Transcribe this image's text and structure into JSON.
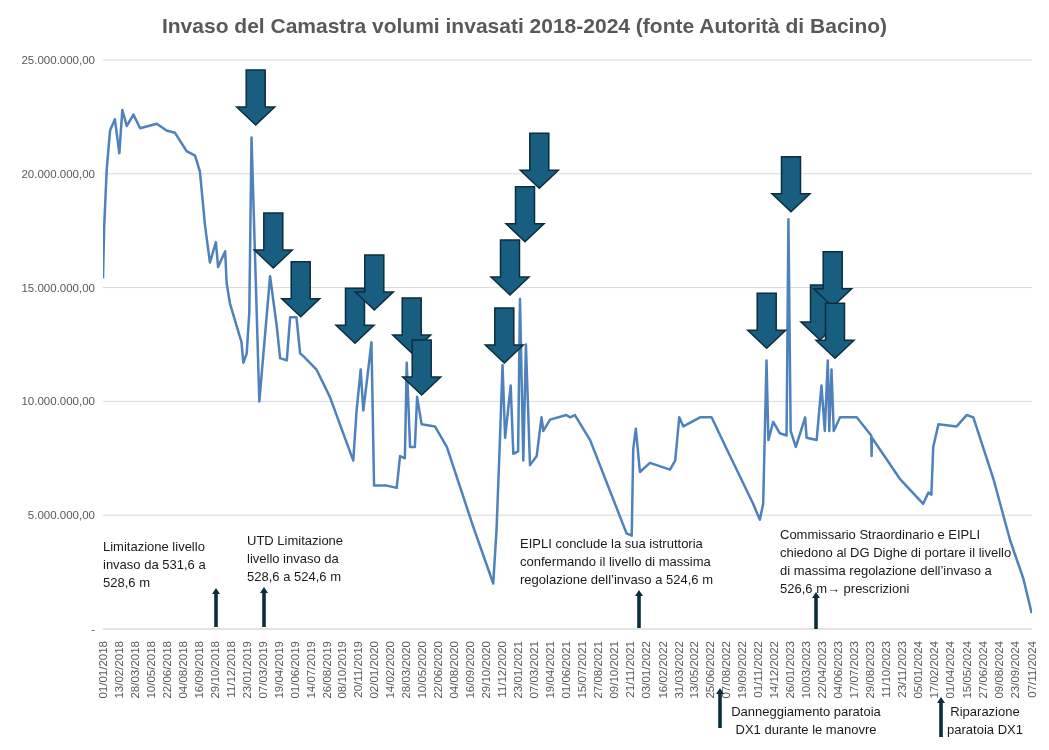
{
  "chart_data": {
    "type": "line",
    "title": "Invaso del Camastra volumi invasati 2018-2024 (fonte Autorità di Bacino)",
    "x": [
      "2018-01-01",
      "2018-01-04",
      "2018-01-11",
      "2018-01-20",
      "2018-02-02",
      "2018-02-14",
      "2018-02-22",
      "2018-03-06",
      "2018-03-24",
      "2018-04-11",
      "2018-05-26",
      "2018-06-21",
      "2018-07-14",
      "2018-08-14",
      "2018-09-06",
      "2018-09-19",
      "2018-10-03",
      "2018-10-16",
      "2018-11-01",
      "2018-11-07",
      "2018-11-26",
      "2018-11-30",
      "2018-12-09",
      "2019-01-09",
      "2019-01-14",
      "2019-01-23",
      "2019-01-30",
      "2019-02-05",
      "2019-02-26",
      "2019-03-27",
      "2019-04-14",
      "2019-04-23",
      "2019-05-11",
      "2019-05-20",
      "2019-06-06",
      "2019-06-16",
      "2019-06-24",
      "2019-07-30",
      "2019-09-04",
      "2019-11-06",
      "2019-11-15",
      "2019-11-26",
      "2019-12-03",
      "2019-12-12",
      "2019-12-25",
      "2020-01-01",
      "2020-02-04",
      "2020-03-02",
      "2020-03-11",
      "2020-03-24",
      "2020-03-29",
      "2020-04-07",
      "2020-04-20",
      "2020-04-26",
      "2020-05-08",
      "2020-06-13",
      "2020-07-15",
      "2020-09-24",
      "2020-11-17",
      "2020-11-26",
      "2020-12-05",
      "2020-12-12",
      "2020-12-19",
      "2021-01-03",
      "2021-01-10",
      "2021-01-23",
      "2021-01-28",
      "2021-02-06",
      "2021-02-13",
      "2021-02-24",
      "2021-03-14",
      "2021-03-27",
      "2021-04-01",
      "2021-04-19",
      "2021-06-02",
      "2021-06-12",
      "2021-06-25",
      "2021-08-05",
      "2021-11-11",
      "2021-11-25",
      "2021-11-29",
      "2021-12-06",
      "2021-12-17",
      "2022-01-13",
      "2022-03-08",
      "2022-03-22",
      "2022-04-02",
      "2022-04-13",
      "2022-05-28",
      "2022-06-28",
      "2022-08-08",
      "2022-10-18",
      "2022-11-05",
      "2022-11-14",
      "2022-11-23",
      "2022-11-28",
      "2022-12-11",
      "2022-12-29",
      "2023-01-16",
      "2023-01-21",
      "2023-01-27",
      "2023-02-10",
      "2023-03-07",
      "2023-03-11",
      "2023-04-07",
      "2023-04-20",
      "2023-04-29",
      "2023-05-07",
      "2023-05-11",
      "2023-05-17",
      "2023-05-23",
      "2023-06-09",
      "2023-07-24",
      "2023-09-01",
      "2023-09-02",
      "2023-09-03",
      "2023-11-17",
      "2024-01-19",
      "2024-02-02",
      "2024-02-10",
      "2024-02-15",
      "2024-02-29",
      "2024-04-18",
      "2024-05-15",
      "2024-06-02",
      "2024-07-26",
      "2024-09-09",
      "2024-10-15",
      "2024-11-06"
    ],
    "series": [
      {
        "color": "#4f81bd",
        "values": [
          15400000,
          17600000,
          20200000,
          21900000,
          22400000,
          20900000,
          22800000,
          22100000,
          22600000,
          22000000,
          22200000,
          21900000,
          21800000,
          21000000,
          20800000,
          20100000,
          17700000,
          16100000,
          17000000,
          15900000,
          16600000,
          15200000,
          14300000,
          12600000,
          11700000,
          12100000,
          13900000,
          21600000,
          10000000,
          15500000,
          13300000,
          11900000,
          11800000,
          13700000,
          13700000,
          12100000,
          12000000,
          11400000,
          10200000,
          7400000,
          9600000,
          11400000,
          9600000,
          10800000,
          12600000,
          6300000,
          6300000,
          6200000,
          7600000,
          7500000,
          11700000,
          8000000,
          8000000,
          10200000,
          9000000,
          8900000,
          8000000,
          4500000,
          2000000,
          4400000,
          8300000,
          11600000,
          8400000,
          10700000,
          7700000,
          7800000,
          14500000,
          7400000,
          12500000,
          7200000,
          7600000,
          9300000,
          8700000,
          9200000,
          9400000,
          9300000,
          9400000,
          8300000,
          4200000,
          4100000,
          7900000,
          8800000,
          6900000,
          7300000,
          7000000,
          7400000,
          9300000,
          8900000,
          9300000,
          9300000,
          7900000,
          5500000,
          4800000,
          5500000,
          11800000,
          8300000,
          9100000,
          8600000,
          8500000,
          18000000,
          8700000,
          8000000,
          9300000,
          8400000,
          8300000,
          10700000,
          8700000,
          11800000,
          8700000,
          11400000,
          8700000,
          9300000,
          9300000,
          8500000,
          7600000,
          8400000,
          6600000,
          5500000,
          6000000,
          5900000,
          8000000,
          9000000,
          8900000,
          9400000,
          9300000,
          6600000,
          3900000,
          2200000,
          700000
        ]
      }
    ],
    "xlim": [
      "2018-01-01",
      "2024-11-07"
    ],
    "xticks": [
      {
        "value": "2018-01-01",
        "label": "01/01/2018"
      },
      {
        "value": "2018-02-13",
        "label": "13/02/2018"
      },
      {
        "value": "2018-03-28",
        "label": "28/03/2018"
      },
      {
        "value": "2018-05-10",
        "label": "10/05/2018"
      },
      {
        "value": "2018-06-22",
        "label": "22/06/2018"
      },
      {
        "value": "2018-08-04",
        "label": "04/08/2018"
      },
      {
        "value": "2018-09-16",
        "label": "16/09/2018"
      },
      {
        "value": "2018-10-29",
        "label": "29/10/2018"
      },
      {
        "value": "2018-12-11",
        "label": "11/12/2018"
      },
      {
        "value": "2019-01-23",
        "label": "23/01/2019"
      },
      {
        "value": "2019-03-07",
        "label": "07/03/2019"
      },
      {
        "value": "2019-04-19",
        "label": "19/04/2019"
      },
      {
        "value": "2019-06-01",
        "label": "01/06/2019"
      },
      {
        "value": "2019-07-14",
        "label": "14/07/2019"
      },
      {
        "value": "2019-08-26",
        "label": "26/08/2019"
      },
      {
        "value": "2019-10-08",
        "label": "08/10/2019"
      },
      {
        "value": "2019-11-20",
        "label": "20/11/2019"
      },
      {
        "value": "2020-01-02",
        "label": "02/01/2020"
      },
      {
        "value": "2020-02-14",
        "label": "14/02/2020"
      },
      {
        "value": "2020-03-28",
        "label": "28/03/2020"
      },
      {
        "value": "2020-05-10",
        "label": "10/05/2020"
      },
      {
        "value": "2020-06-22",
        "label": "22/06/2020"
      },
      {
        "value": "2020-08-04",
        "label": "04/08/2020"
      },
      {
        "value": "2020-09-16",
        "label": "16/09/2020"
      },
      {
        "value": "2020-10-29",
        "label": "29/10/2020"
      },
      {
        "value": "2020-12-11",
        "label": "11/12/2020"
      },
      {
        "value": "2021-01-23",
        "label": "23/01/2021"
      },
      {
        "value": "2021-03-07",
        "label": "07/03/2021"
      },
      {
        "value": "2021-04-19",
        "label": "19/04/2021"
      },
      {
        "value": "2021-06-01",
        "label": "01/06/2021"
      },
      {
        "value": "2021-07-15",
        "label": "15/07/2021"
      },
      {
        "value": "2021-08-27",
        "label": "27/08/2021"
      },
      {
        "value": "2021-10-09",
        "label": "09/10/2021"
      },
      {
        "value": "2021-11-21",
        "label": "21/11/2021"
      },
      {
        "value": "2022-01-03",
        "label": "03/01/2022"
      },
      {
        "value": "2022-02-16",
        "label": "16/02/2022"
      },
      {
        "value": "2022-03-31",
        "label": "31/03/2022"
      },
      {
        "value": "2022-05-13",
        "label": "13/05/2022"
      },
      {
        "value": "2022-06-25",
        "label": "25/06/2022"
      },
      {
        "value": "2022-08-07",
        "label": "07/08/2022"
      },
      {
        "value": "2022-09-19",
        "label": "19/09/2022"
      },
      {
        "value": "2022-11-01",
        "label": "01/11/2022"
      },
      {
        "value": "2022-12-14",
        "label": "14/12/2022"
      },
      {
        "value": "2023-01-26",
        "label": "26/01/2023"
      },
      {
        "value": "2023-03-10",
        "label": "10/03/2023"
      },
      {
        "value": "2023-04-22",
        "label": "22/04/2023"
      },
      {
        "value": "2023-06-04",
        "label": "04/06/2023"
      },
      {
        "value": "2023-07-17",
        "label": "17/07/2023"
      },
      {
        "value": "2023-08-29",
        "label": "29/08/2023"
      },
      {
        "value": "2023-10-11",
        "label": "11/10/2023"
      },
      {
        "value": "2023-11-23",
        "label": "23/11/2023"
      },
      {
        "value": "2024-01-05",
        "label": "05/01/2024"
      },
      {
        "value": "2024-02-17",
        "label": "17/02/2024"
      },
      {
        "value": "2024-04-01",
        "label": "01/04/2024"
      },
      {
        "value": "2024-05-15",
        "label": "15/05/2024"
      },
      {
        "value": "2024-06-27",
        "label": "27/06/2024"
      },
      {
        "value": "2024-08-09",
        "label": "09/08/2024"
      },
      {
        "value": "2024-09-23",
        "label": "23/09/2024"
      },
      {
        "value": "2024-11-07",
        "label": "07/11/2024"
      }
    ],
    "ylim": [
      0,
      25000000
    ],
    "yticks": [
      {
        "value": 0,
        "label": "-"
      },
      {
        "value": 5000000,
        "label": "5.000.000,00"
      },
      {
        "value": 10000000,
        "label": "10.000.000,00"
      },
      {
        "value": 15000000,
        "label": "15.000.000,00"
      },
      {
        "value": 20000000,
        "label": "20.000.000,00"
      },
      {
        "value": 25000000,
        "label": "25.000.000,00"
      }
    ],
    "grid": "y",
    "marker": "none",
    "line_style": "solid",
    "annotations": [
      "Limitazione livello invaso da 531,6 a 528,6 m",
      "UTD Limitazione livello invaso da 528,6 a 524,6 m",
      "EIPLI conclude la sua istruttoria confermando il livello di massima regolazione dell’invaso a 524,6 m",
      "Commissario Straordinario e EIPLI chiedono al DG Dighe di portare il livello di massima regolazione dell’invaso a 526,6 m→ prescrizioni",
      "Danneggiamento paratoia DX1 durante le manovre",
      "Riparazione paratoia DX1"
    ]
  }
}
